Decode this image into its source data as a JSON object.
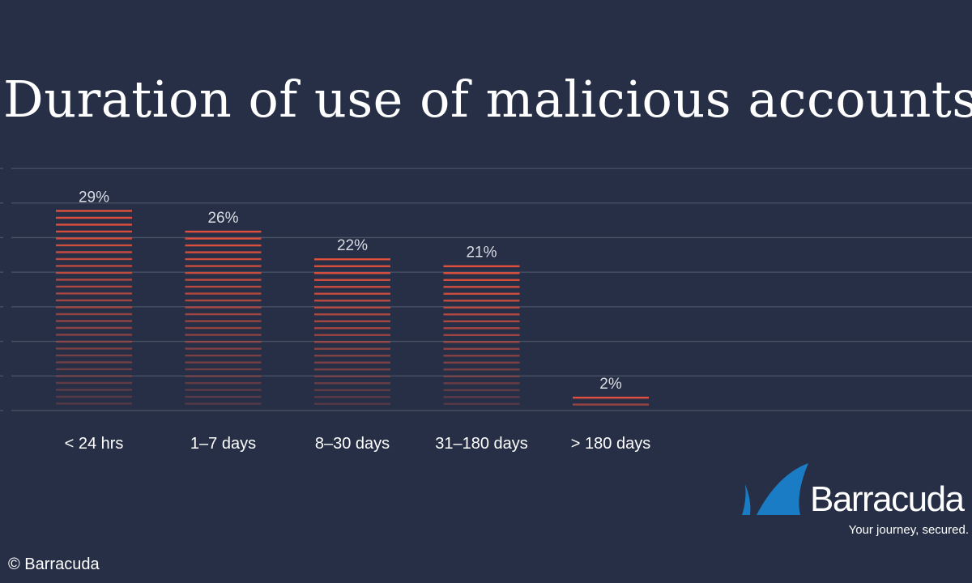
{
  "colors": {
    "background": "#262f45",
    "gridline": "#4a5366",
    "bar_stripe": "#e0503c",
    "bar_stripe_fade": "#3a3a52",
    "text": "#ffffff",
    "label_text": "#d9dce3",
    "logo_blue": "#1a7cc4"
  },
  "chart_data": {
    "type": "bar",
    "title": "Duration of use of malicious accounts",
    "categories": [
      "< 24 hrs",
      "1–7 days",
      "8–30 days",
      "31–180 days",
      "> 180 days"
    ],
    "values": [
      29,
      26,
      22,
      21,
      2
    ],
    "data_labels": [
      "29%",
      "26%",
      "22%",
      "21%",
      "2%"
    ],
    "xlabel": "",
    "ylabel": "",
    "ylim": [
      0,
      35
    ],
    "grid": true,
    "legend": "none"
  },
  "logo": {
    "icon": "barracuda-fin-icon",
    "wordmark": "Barracuda",
    "tagline": "Your journey, secured."
  },
  "credit": {
    "text": "© Barracuda"
  }
}
